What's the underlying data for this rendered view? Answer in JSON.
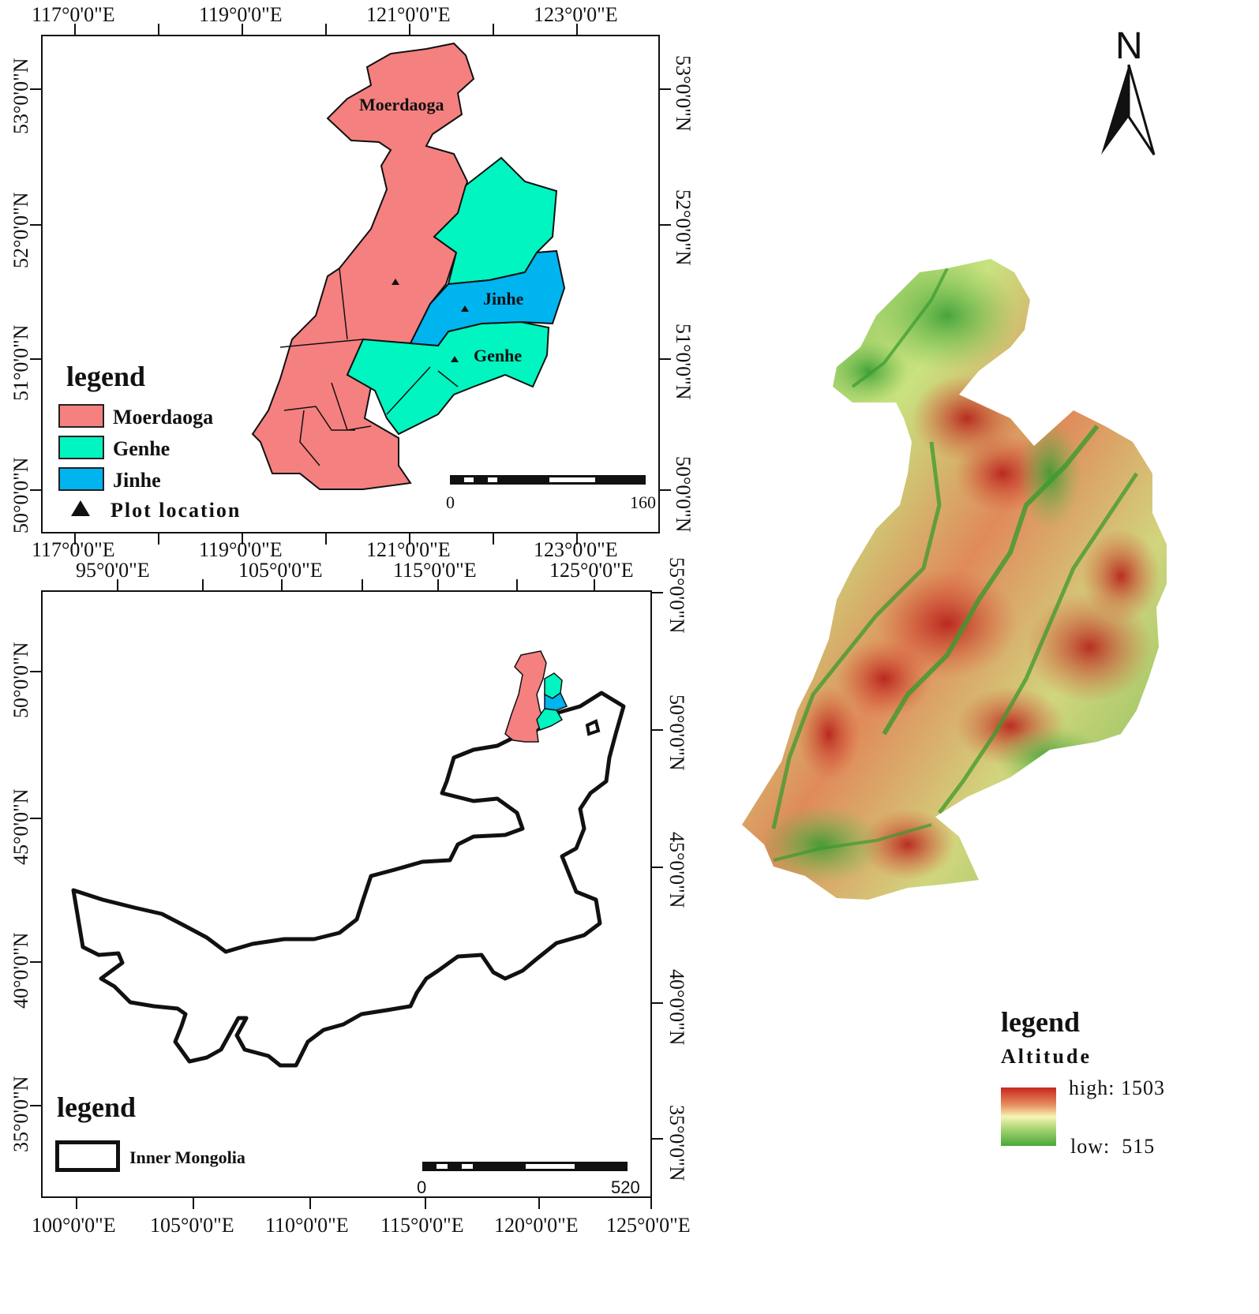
{
  "top_map": {
    "lon_ticks": [
      "117°0'0\"E",
      "119°0'0\"E",
      "121°0'0\"E",
      "123°0'0\"E"
    ],
    "lat_ticks": [
      "53°0'0\"N",
      "52°0'0\"N",
      "51°0'0\"N",
      "50°0'0\"N"
    ],
    "regions": [
      {
        "name": "Moerdaoga",
        "color": "#f58080"
      },
      {
        "name": "Genhe",
        "color": "#00f5c0"
      },
      {
        "name": "Jinhe",
        "color": "#00b4f0"
      }
    ],
    "legend": {
      "title": "legend",
      "items": [
        "Moerdaoga",
        "Genhe",
        "Jinhe"
      ],
      "plot_label": "Plot location"
    },
    "scale": {
      "start": "0",
      "end": "160"
    }
  },
  "bottom_map": {
    "lon_ticks_top": [
      "95°0'0\"E",
      "105°0'0\"E",
      "115°0'0\"E",
      "125°0'0\"E"
    ],
    "lon_ticks_bottom": [
      "100°0'0\"E",
      "105°0'0\"E",
      "110°0'0\"E",
      "115°0'0\"E",
      "120°0'0\"E",
      "125°0'0\"E"
    ],
    "lat_ticks_left": [
      "50°0'0\"N",
      "45°0'0\"N",
      "40°0'0\"N",
      "35°0'0\"N"
    ],
    "lat_ticks_right": [
      "55°0'0\"N",
      "50°0'0\"N",
      "45°0'0\"N",
      "40°0'0\"N",
      "35°0'0\"N"
    ],
    "legend": {
      "title": "legend",
      "item": "Inner Mongolia"
    },
    "scale": {
      "start": "0",
      "end": "520"
    }
  },
  "altitude_map": {
    "north_label": "N",
    "legend": {
      "title": "legend",
      "subtitle": "Altitude",
      "high": "high: 1503",
      "low": "low:  515"
    },
    "colors": {
      "high": "#c8261e",
      "mid": "#f7f5b4",
      "low": "#48a83a"
    }
  }
}
